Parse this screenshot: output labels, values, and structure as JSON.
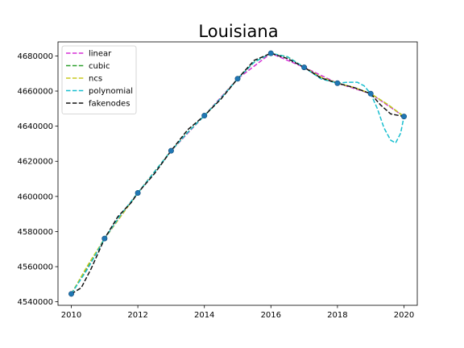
{
  "chart_data": {
    "type": "line",
    "title": "Louisiana",
    "xlabel": "",
    "ylabel": "",
    "xlim": [
      2009.6,
      2020.4
    ],
    "ylim": [
      4538000,
      4688000
    ],
    "x_ticks": [
      2010,
      2012,
      2014,
      2016,
      2018,
      2020
    ],
    "y_ticks": [
      4540000,
      4560000,
      4580000,
      4600000,
      4620000,
      4640000,
      4660000,
      4680000
    ],
    "grid": false,
    "legend_position": "top-left",
    "points": {
      "x": [
        2010,
        2011,
        2012,
        2013,
        2014,
        2015,
        2016,
        2017,
        2018,
        2019,
        2020
      ],
      "y": [
        4544500,
        4576000,
        4602000,
        4626000,
        4646000,
        4667000,
        4681500,
        4673500,
        4664500,
        4658500,
        4645500
      ],
      "color": "#1f77b4"
    },
    "series": [
      {
        "name": "linear",
        "color": "#d62fd6",
        "x": [
          2010,
          2011,
          2012,
          2013,
          2014,
          2015,
          2016,
          2017,
          2018,
          2019,
          2020
        ],
        "y": [
          4544500,
          4576000,
          4602000,
          4626000,
          4646000,
          4667000,
          4681500,
          4673500,
          4664500,
          4658500,
          4645500
        ]
      },
      {
        "name": "cubic",
        "color": "#2ca02c",
        "x": [
          2010,
          2010.5,
          2011,
          2011.5,
          2012,
          2012.5,
          2013,
          2013.5,
          2014,
          2014.5,
          2015,
          2015.5,
          2016,
          2016.5,
          2017,
          2017.5,
          2018,
          2018.5,
          2019,
          2019.5,
          2020
        ],
        "y": [
          4544500,
          4560500,
          4576000,
          4589500,
          4602000,
          4614000,
          4626000,
          4636500,
          4646000,
          4656000,
          4667000,
          4676500,
          4681500,
          4679500,
          4673500,
          4668000,
          4664500,
          4662000,
          4658500,
          4652500,
          4645500
        ]
      },
      {
        "name": "ncs",
        "color": "#c8c81e",
        "x": [
          2010,
          2010.5,
          2011,
          2011.5,
          2012,
          2012.5,
          2013,
          2013.5,
          2014,
          2014.5,
          2015,
          2015.5,
          2016,
          2016.5,
          2017,
          2017.5,
          2018,
          2018.5,
          2019,
          2019.5,
          2020
        ],
        "y": [
          4544500,
          4561000,
          4576000,
          4589000,
          4602000,
          4614000,
          4626000,
          4636500,
          4646000,
          4656000,
          4667000,
          4676500,
          4681500,
          4679500,
          4673500,
          4668000,
          4664500,
          4662000,
          4658500,
          4652500,
          4645500
        ]
      },
      {
        "name": "polynomial",
        "color": "#17becf",
        "x": [
          2010,
          2010.5,
          2011,
          2011.5,
          2012,
          2012.5,
          2013,
          2013.5,
          2014,
          2014.5,
          2015,
          2015.5,
          2016,
          2016.5,
          2017,
          2017.5,
          2018,
          2018.3,
          2018.6,
          2018.8,
          2019,
          2019.2,
          2019.4,
          2019.6,
          2019.75,
          2019.9,
          2020
        ],
        "y": [
          4544500,
          4559000,
          4576000,
          4590000,
          4602000,
          4614000,
          4626000,
          4636500,
          4646000,
          4656000,
          4667000,
          4676500,
          4681500,
          4679500,
          4673500,
          4667000,
          4664500,
          4665000,
          4665000,
          4663000,
          4658500,
          4650000,
          4639000,
          4632000,
          4630500,
          4636000,
          4645500
        ]
      },
      {
        "name": "fakenodes",
        "color": "#111111",
        "x": [
          2010,
          2010.3,
          2010.6,
          2011,
          2011.4,
          2011.8,
          2012,
          2012.5,
          2013,
          2013.5,
          2014,
          2014.5,
          2015,
          2015.5,
          2016,
          2016.5,
          2017,
          2017.5,
          2018,
          2018.5,
          2019,
          2019.3,
          2019.6,
          2020
        ],
        "y": [
          4544500,
          4548000,
          4559000,
          4576000,
          4588500,
          4596500,
          4602000,
          4613000,
          4626000,
          4638000,
          4646000,
          4655500,
          4667000,
          4677500,
          4681500,
          4678500,
          4673500,
          4667500,
          4664500,
          4662000,
          4658500,
          4652000,
          4647000,
          4645500
        ]
      }
    ]
  }
}
